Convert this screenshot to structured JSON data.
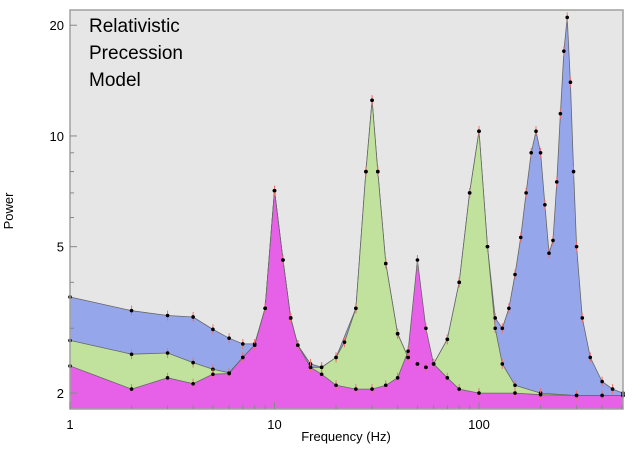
{
  "chart_data": {
    "type": "area",
    "title": "",
    "annotation": [
      "Relativistic",
      "Precession",
      "Model"
    ],
    "xlabel": "Frequency (Hz)",
    "ylabel": "Power",
    "xscale": "log",
    "yscale": "log",
    "xlim": [
      1,
      506
    ],
    "ylim": [
      1.81,
      22
    ],
    "xticks": [
      1,
      10,
      100
    ],
    "xtick_labels": [
      "1",
      "10",
      "100"
    ],
    "yticks": [
      2,
      5,
      10,
      20
    ],
    "ytick_labels": [
      "2",
      "5",
      "10",
      "20"
    ],
    "grid": false,
    "legend": "none",
    "background": "#e6e6e6",
    "series": [
      {
        "name": "blue",
        "color": "#96a6ea",
        "x": [
          1,
          2,
          3,
          4,
          5,
          6,
          7,
          8,
          9,
          10,
          11,
          12,
          13,
          15,
          17,
          20,
          25,
          28,
          30,
          32,
          35,
          40,
          45,
          50,
          55,
          60,
          70,
          80,
          90,
          100,
          110,
          120,
          130,
          140,
          150,
          160,
          170,
          180,
          190,
          200,
          210,
          220,
          230,
          240,
          250,
          260,
          270,
          280,
          290,
          300,
          320,
          350,
          400,
          450,
          506
        ],
        "y": [
          3.65,
          3.35,
          3.25,
          3.22,
          2.98,
          2.82,
          2.72,
          2.72,
          3.4,
          7.1,
          4.6,
          3.2,
          2.7,
          2.4,
          2.35,
          2.5,
          3.4,
          8.0,
          12.5,
          8.0,
          4.5,
          2.9,
          2.5,
          2.4,
          2.35,
          2.4,
          2.8,
          4.0,
          7.0,
          10.3,
          5.0,
          3.2,
          3.0,
          3.4,
          4.2,
          5.3,
          7.0,
          9.0,
          10.3,
          9.0,
          6.5,
          4.8,
          5.2,
          7.5,
          11.5,
          17.0,
          21.0,
          14.0,
          8.0,
          5.0,
          3.2,
          2.5,
          2.15,
          2.05,
          2.0
        ]
      },
      {
        "name": "green",
        "color": "#c0e29c",
        "x": [
          1,
          2,
          3,
          4,
          5,
          6,
          7,
          8,
          9,
          10,
          11,
          12,
          13,
          15,
          17,
          20,
          22,
          25,
          28,
          30,
          32,
          35,
          40,
          45,
          50,
          55,
          60,
          70,
          80,
          90,
          100,
          110,
          120,
          130,
          150,
          200,
          300,
          506
        ],
        "y": [
          2.78,
          2.55,
          2.57,
          2.42,
          2.32,
          2.27,
          2.5,
          2.7,
          3.4,
          7.1,
          4.6,
          3.2,
          2.7,
          2.35,
          2.35,
          2.5,
          2.75,
          3.4,
          8.0,
          12.5,
          8.0,
          4.5,
          2.9,
          2.5,
          2.4,
          2.35,
          2.4,
          2.8,
          4.0,
          7.0,
          10.3,
          5.0,
          3.0,
          2.4,
          2.1,
          2.0,
          1.97,
          1.97
        ]
      },
      {
        "name": "magenta",
        "color": "#e660e8",
        "x": [
          1,
          2,
          3,
          4,
          5,
          6,
          7,
          8,
          9,
          10,
          11,
          12,
          13,
          15,
          17,
          20,
          25,
          30,
          35,
          40,
          45,
          50,
          55,
          60,
          70,
          80,
          100,
          150,
          200,
          300,
          400,
          506
        ],
        "y": [
          2.37,
          2.05,
          2.2,
          2.12,
          2.25,
          2.26,
          2.5,
          2.7,
          3.4,
          7.1,
          4.6,
          3.2,
          2.7,
          2.35,
          2.25,
          2.1,
          2.05,
          2.05,
          2.1,
          2.2,
          2.6,
          4.6,
          3.0,
          2.4,
          2.2,
          2.05,
          2.0,
          2.0,
          1.98,
          1.97,
          1.97,
          1.97
        ]
      }
    ]
  }
}
